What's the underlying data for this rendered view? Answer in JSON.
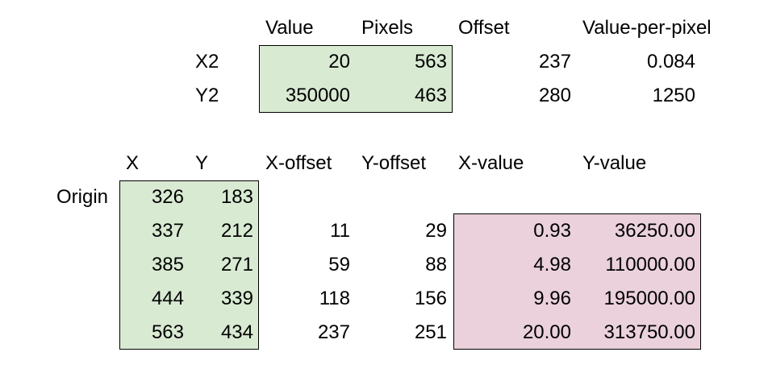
{
  "colors": {
    "green_fill": "#d9ead3",
    "pink_fill": "#ead1dc"
  },
  "top_table": {
    "headers": [
      "Value",
      "Pixels",
      "Offset",
      "Value-per-pixel"
    ],
    "rows": [
      {
        "label": "X2",
        "value": "20",
        "pixels": "563",
        "offset": "237",
        "vpp": "0.084"
      },
      {
        "label": "Y2",
        "value": "350000",
        "pixels": "463",
        "offset": "280",
        "vpp": "1250"
      }
    ]
  },
  "bottom_table": {
    "headers": [
      "X",
      "Y",
      "X-offset",
      "Y-offset",
      "X-value",
      "Y-value"
    ],
    "origin_label": "Origin",
    "rows": [
      {
        "x": "326",
        "y": "183",
        "xoff": "",
        "yoff": "",
        "xval": "",
        "yval": ""
      },
      {
        "x": "337",
        "y": "212",
        "xoff": "11",
        "yoff": "29",
        "xval": "0.93",
        "yval": "36250.00"
      },
      {
        "x": "385",
        "y": "271",
        "xoff": "59",
        "yoff": "88",
        "xval": "4.98",
        "yval": "110000.00"
      },
      {
        "x": "444",
        "y": "339",
        "xoff": "118",
        "yoff": "156",
        "xval": "9.96",
        "yval": "195000.00"
      },
      {
        "x": "563",
        "y": "434",
        "xoff": "237",
        "yoff": "251",
        "xval": "20.00",
        "yval": "313750.00"
      }
    ]
  }
}
